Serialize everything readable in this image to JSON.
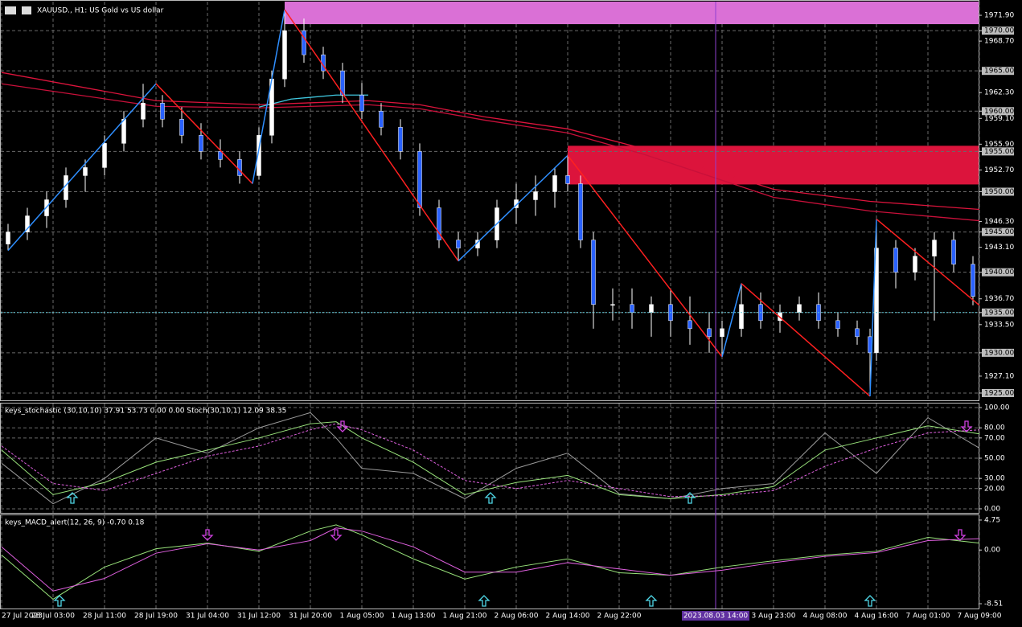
{
  "header": {
    "title": "XAUUSD., H1: US Gold vs US dollar"
  },
  "main": {
    "ylim": [
      1924.2,
      1973.6
    ],
    "yticks": [
      {
        "value": 1970,
        "label": "1970.00"
      },
      {
        "value": 1965,
        "label": "1965.00"
      },
      {
        "value": 1960,
        "label": "1960.00"
      },
      {
        "value": 1955,
        "label": "1955.00"
      },
      {
        "value": 1950,
        "label": "1950.00"
      },
      {
        "value": 1945,
        "label": "1945.00"
      },
      {
        "value": 1940,
        "label": "1940.00"
      },
      {
        "value": 1935,
        "label": "1935.00"
      },
      {
        "value": 1930,
        "label": "1930.00"
      },
      {
        "value": 1925,
        "label": "1925.00"
      }
    ],
    "yticks_minor": [
      {
        "value": 1971.9,
        "label": "1971.90"
      },
      {
        "value": 1968.7,
        "label": "1968.70"
      },
      {
        "value": 1962.3,
        "label": "1962.30"
      },
      {
        "value": 1959.1,
        "label": "1959.10"
      },
      {
        "value": 1955.9,
        "label": "1955.90"
      },
      {
        "value": 1952.7,
        "label": "1952.70"
      },
      {
        "value": 1946.3,
        "label": "1946.30"
      },
      {
        "value": 1943.1,
        "label": "1943.10"
      },
      {
        "value": 1936.7,
        "label": "1936.70"
      },
      {
        "value": 1933.5,
        "label": "1933.50"
      },
      {
        "value": 1927.1,
        "label": "1927.10"
      }
    ],
    "candles": {
      "bull_color": "#ffffff",
      "bear_color": "#2a62ff",
      "x": [
        1,
        4,
        7,
        10,
        13,
        16,
        19,
        22,
        25,
        28,
        31,
        34,
        37,
        40,
        42,
        44,
        47,
        50,
        53,
        56,
        59,
        62,
        65,
        68,
        71,
        74,
        77,
        80,
        83,
        86,
        88,
        90,
        92,
        95,
        98,
        101,
        104,
        107,
        110,
        112,
        115,
        118,
        121,
        124,
        127,
        130,
        133,
        135,
        136,
        139,
        142,
        145,
        148,
        151
      ],
      "open": [
        1943.5,
        1945,
        1947,
        1949,
        1952,
        1953,
        1956,
        1959,
        1961,
        1959,
        1957,
        1955,
        1954,
        1952,
        1957,
        1964,
        1970,
        1967,
        1965,
        1962,
        1960,
        1958,
        1955,
        1948,
        1944,
        1943,
        1944,
        1948,
        1949,
        1950,
        1952,
        1951,
        1944,
        1936,
        1936,
        1935,
        1936,
        1934,
        1933,
        1932,
        1933,
        1936,
        1934,
        1935,
        1936,
        1934,
        1933,
        1932,
        1930,
        1943,
        1940,
        1942,
        1944,
        1941
      ],
      "high": [
        1946,
        1948,
        1950,
        1953,
        1954,
        1957,
        1960,
        1963.4,
        1962,
        1960.5,
        1958.5,
        1956.5,
        1955,
        1958,
        1965,
        1972.6,
        1971.5,
        1968,
        1966,
        1963.5,
        1961,
        1959,
        1956,
        1949,
        1945,
        1945,
        1949,
        1951,
        1952,
        1953,
        1954.5,
        1952,
        1945,
        1938,
        1938,
        1937,
        1938,
        1937,
        1935,
        1934,
        1938.6,
        1937.5,
        1936,
        1937,
        1937.5,
        1935,
        1934,
        1933,
        1946.6,
        1944,
        1943,
        1945,
        1945,
        1942
      ],
      "low": [
        1942.7,
        1944,
        1945.5,
        1948,
        1950,
        1952,
        1955,
        1958,
        1958,
        1956,
        1954,
        1953,
        1951,
        1951.5,
        1956,
        1963,
        1966,
        1964,
        1961,
        1959,
        1957,
        1954,
        1947,
        1943,
        1941.4,
        1942,
        1943,
        1946,
        1947,
        1948,
        1950,
        1943,
        1933,
        1934,
        1933,
        1932,
        1932,
        1931,
        1930,
        1929.5,
        1932,
        1933,
        1932.5,
        1934,
        1933,
        1932,
        1931,
        1924.6,
        1929,
        1938,
        1939,
        1934,
        1940,
        1935.9
      ],
      "close": [
        1945,
        1947,
        1949,
        1952,
        1953,
        1956,
        1959,
        1961,
        1959,
        1957,
        1955,
        1954,
        1952,
        1957,
        1964,
        1970,
        1967,
        1965,
        1962,
        1960,
        1958,
        1955,
        1948,
        1944,
        1943,
        1944,
        1948,
        1949,
        1950,
        1952,
        1951,
        1944,
        1936,
        1936,
        1935,
        1936,
        1934,
        1933,
        1932,
        1933,
        1936,
        1934,
        1935,
        1936,
        1934,
        1933,
        1932,
        1930,
        1943,
        1940,
        1942,
        1944,
        1941,
        1937
      ]
    },
    "zigzag": {
      "up_color": "#2f8fff",
      "down_color": "#ff2020",
      "x": [
        1,
        24,
        39,
        44,
        71,
        88,
        112,
        115,
        135,
        136,
        152
      ],
      "values": [
        1942.7,
        1963.4,
        1951.0,
        1972.6,
        1941.4,
        1954.5,
        1929.5,
        1938.6,
        1924.6,
        1946.6,
        1935.9
      ]
    },
    "moving_averages": [
      {
        "color": "#dc143c",
        "x": [
          0,
          24,
          40,
          57,
          65,
          75,
          88,
          100,
          120,
          135,
          152
        ],
        "values": [
          1964.8,
          1961.3,
          1960.8,
          1961.3,
          1960.8,
          1959.3,
          1957.8,
          1955.3,
          1950.3,
          1948.8,
          1947.8
        ]
      },
      {
        "color": "#c8103a",
        "x": [
          0,
          24,
          40,
          57,
          65,
          75,
          88,
          100,
          120,
          135,
          152
        ],
        "values": [
          1963.4,
          1960.6,
          1960.4,
          1960.8,
          1960.3,
          1958.9,
          1957.3,
          1954.6,
          1949.3,
          1947.6,
          1946.4
        ]
      },
      {
        "color": "#40c8e0",
        "x": [
          40,
          45,
          52,
          57
        ],
        "values": [
          1960.5,
          1961.5,
          1962,
          1962
        ]
      }
    ],
    "zones": [
      {
        "color": "#da70d6",
        "from": 44,
        "top": 1973.6,
        "bottom": 1970.8
      },
      {
        "color": "#dc143c",
        "from": 88,
        "top": 1955.7,
        "bottom": 1950.9
      }
    ],
    "current_price": 1935.0,
    "crosshair": {
      "x": 111,
      "label": "2023.08.03 14:00"
    }
  },
  "stoch": {
    "title": "keys_stochastic (30,10,10) 37.91 53.73 0.00 0.00 Stoch(30,10,1) 12.09 38.35",
    "ylim": [
      -4,
      104
    ],
    "yticks": [
      {
        "value": 100,
        "label": "100.00"
      },
      {
        "value": 80,
        "label": "80.00"
      },
      {
        "value": 70,
        "label": "70.00"
      },
      {
        "value": 50,
        "label": "50.00"
      },
      {
        "value": 30,
        "label": "30.00"
      },
      {
        "value": 20,
        "label": "20.00"
      },
      {
        "value": 0,
        "label": "0.00"
      }
    ],
    "x": [
      0,
      8,
      16,
      24,
      32,
      40,
      48,
      52,
      56,
      64,
      72,
      80,
      88,
      96,
      104,
      112,
      120,
      128,
      136,
      144,
      152
    ],
    "series": [
      {
        "color": "#9a9a9a",
        "values": [
          45,
          5,
          30,
          70,
          55,
          80,
          95,
          70,
          40,
          35,
          10,
          40,
          55,
          15,
          10,
          20,
          25,
          75,
          35,
          90,
          60
        ]
      },
      {
        "color": "#98e27a",
        "values": [
          58,
          14,
          26,
          46,
          58,
          70,
          84,
          86,
          70,
          46,
          14,
          26,
          33,
          14,
          10,
          14,
          22,
          58,
          70,
          82,
          74
        ]
      },
      {
        "color": "#e060e0",
        "dashed": true,
        "values": [
          62,
          25,
          18,
          35,
          52,
          62,
          78,
          84,
          78,
          58,
          28,
          20,
          28,
          20,
          12,
          13,
          18,
          42,
          60,
          75,
          78
        ]
      }
    ],
    "buy_signals": [
      11,
      76,
      107
    ],
    "sell_signals": [
      53,
      150
    ]
  },
  "macd": {
    "title": "keys_MACD_alert(12, 26, 9) -0.70 0.18",
    "ylim": [
      -9.27,
      5.51
    ],
    "yticks": [
      {
        "value": 4.75,
        "label": "4.75"
      },
      {
        "value": 0,
        "label": "0.00"
      },
      {
        "value": -8.51,
        "label": "-8.51"
      }
    ],
    "x": [
      0,
      8,
      16,
      24,
      32,
      40,
      48,
      52,
      56,
      64,
      72,
      80,
      88,
      96,
      104,
      112,
      120,
      128,
      136,
      144,
      152
    ],
    "series": [
      {
        "color": "#98e27a",
        "values": [
          -0.8,
          -7.8,
          -2.7,
          0.2,
          1.1,
          -0.2,
          3.0,
          4.0,
          2.4,
          -1.4,
          -4.6,
          -2.7,
          -1.4,
          -3.6,
          -4.0,
          -2.7,
          -1.7,
          -0.8,
          -0.2,
          2.0,
          1.1
        ]
      },
      {
        "color": "#e060e0",
        "values": [
          0.5,
          -6.5,
          -4.5,
          -0.5,
          1.0,
          0.0,
          1.5,
          3.5,
          3.0,
          0.5,
          -3.5,
          -3.5,
          -2.0,
          -3.0,
          -4.0,
          -3.2,
          -2.0,
          -1.0,
          -0.4,
          1.5,
          1.8
        ]
      }
    ],
    "buy_signals": [
      9,
      75,
      101,
      135
    ],
    "sell_signals": [
      32,
      52,
      149
    ]
  },
  "time_axis": {
    "x": [
      0,
      8,
      16,
      24,
      32,
      40,
      48,
      56,
      64,
      72,
      80,
      88,
      96,
      104,
      112,
      120,
      128,
      136,
      144,
      152
    ],
    "categories": [
      "27 Jul 2023",
      "28 Jul 03:00",
      "28 Jul 11:00",
      "28 Jul 19:00",
      "31 Jul 04:00",
      "31 Jul 12:00",
      "31 Jul 20:00",
      "1 Aug 05:00",
      "1 Aug 13:00",
      "1 Aug 21:00",
      "2 Aug 06:00",
      "2 Aug 14:00",
      "2 Aug 22:00",
      null,
      null,
      "3 Aug 23:00",
      "4 Aug 08:00",
      "4 Aug 16:00",
      "7 Aug 01:00",
      "7 Aug 09:00"
    ]
  }
}
